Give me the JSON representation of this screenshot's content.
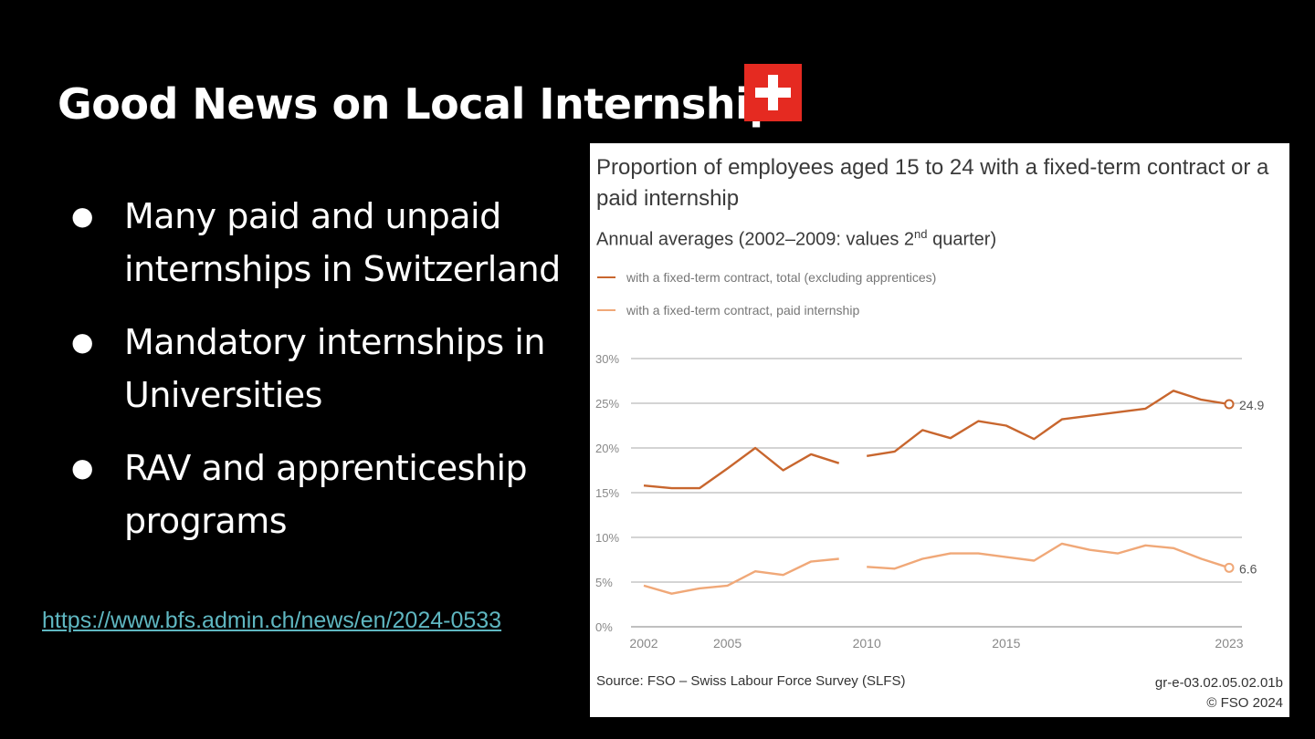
{
  "slide": {
    "title": "Good News on Local Internships",
    "bullets": [
      "Many paid and unpaid internships in Switzerland",
      "Mandatory internships in Universities",
      "RAV and apprenticeship programs"
    ],
    "bullet_glyph": "●",
    "link_text": "https://www.bfs.admin.ch/news/en/2024-0533",
    "flag_icon": "swiss-flag-icon"
  },
  "chart_panel": {
    "title": "Proportion of employees aged 15 to 24 with a fixed-term contract or a paid internship",
    "subtitle_main": "Annual averages (2002–2009: values 2",
    "subtitle_sup": "nd",
    "subtitle_end": " quarter)",
    "source": "Source: FSO – Swiss Labour Force Survey (SLFS)",
    "code": "gr-e-03.02.05.02.01b",
    "copyright": "© FSO 2024"
  },
  "chart_data": {
    "type": "line",
    "title": "Proportion of employees aged 15 to 24 with a fixed-term contract or a paid internship",
    "xlim": [
      2002,
      2023
    ],
    "ylim": [
      0,
      30
    ],
    "x_ticks": [
      "2002",
      "2005",
      "2010",
      "2015",
      "2023"
    ],
    "y_ticks": [
      "0%",
      "5%",
      "10%",
      "15%",
      "20%",
      "25%",
      "30%"
    ],
    "grid": true,
    "legend_position": "top-left",
    "series": [
      {
        "name": "with a fixed-term contract, total (excluding apprentices)",
        "color": "#c8662e",
        "segments": [
          [
            [
              2002,
              15.8
            ],
            [
              2003,
              15.5
            ],
            [
              2004,
              15.5
            ],
            [
              2005,
              17.7
            ],
            [
              2006,
              20.0
            ],
            [
              2007,
              17.5
            ],
            [
              2008,
              19.3
            ],
            [
              2009,
              18.3
            ]
          ],
          [
            [
              2010,
              19.1
            ],
            [
              2011,
              19.6
            ],
            [
              2012,
              22.0
            ],
            [
              2013,
              21.1
            ],
            [
              2014,
              23.0
            ],
            [
              2015,
              22.5
            ],
            [
              2016,
              21.0
            ],
            [
              2017,
              23.2
            ],
            [
              2018,
              23.6
            ],
            [
              2019,
              24.0
            ],
            [
              2020,
              24.4
            ],
            [
              2021,
              26.4
            ],
            [
              2022,
              25.4
            ],
            [
              2023,
              24.9
            ]
          ]
        ],
        "end_label": "24.9"
      },
      {
        "name": "with a fixed-term contract, paid internship",
        "color": "#f0a878",
        "segments": [
          [
            [
              2002,
              4.6
            ],
            [
              2003,
              3.7
            ],
            [
              2004,
              4.3
            ],
            [
              2005,
              4.6
            ],
            [
              2006,
              6.2
            ],
            [
              2007,
              5.8
            ],
            [
              2008,
              7.3
            ],
            [
              2009,
              7.6
            ]
          ],
          [
            [
              2010,
              6.7
            ],
            [
              2011,
              6.5
            ],
            [
              2012,
              7.6
            ],
            [
              2013,
              8.2
            ],
            [
              2014,
              8.2
            ],
            [
              2015,
              7.8
            ],
            [
              2016,
              7.4
            ],
            [
              2017,
              9.3
            ],
            [
              2018,
              8.6
            ],
            [
              2019,
              8.2
            ],
            [
              2020,
              9.1
            ],
            [
              2021,
              8.8
            ],
            [
              2022,
              7.6
            ],
            [
              2023,
              6.6
            ]
          ]
        ],
        "end_label": "6.6"
      }
    ]
  }
}
